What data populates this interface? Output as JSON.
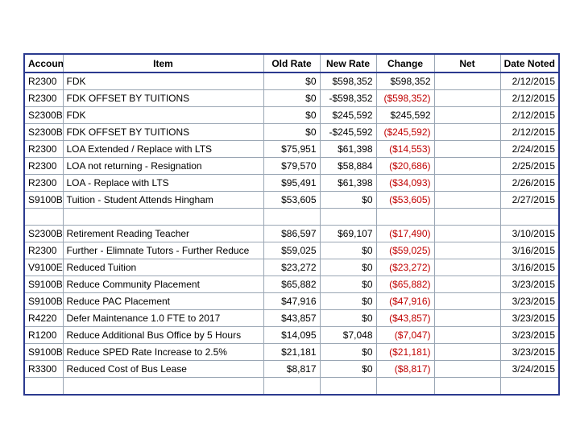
{
  "columns": [
    "Account",
    "Item",
    "Old Rate",
    "New Rate",
    "Change",
    "Net",
    "Date Noted"
  ],
  "rows": [
    {
      "account": "R2300",
      "item": "FDK",
      "old": "$0",
      "new": "$598,352",
      "change": "$598,352",
      "net": "",
      "date": "2/12/2015",
      "neg": false
    },
    {
      "account": "R2300",
      "item": "FDK OFFSET BY TUITIONS",
      "old": "$0",
      "new": "-$598,352",
      "change": "($598,352)",
      "net": "",
      "date": "2/12/2015",
      "neg": true
    },
    {
      "account": "S2300B",
      "item": "FDK",
      "old": "$0",
      "new": "$245,592",
      "change": "$245,592",
      "net": "",
      "date": "2/12/2015",
      "neg": false
    },
    {
      "account": "S2300B",
      "item": "FDK OFFSET BY TUITIONS",
      "old": "$0",
      "new": "-$245,592",
      "change": "($245,592)",
      "net": "",
      "date": "2/12/2015",
      "neg": true
    },
    {
      "account": "R2300",
      "item": "LOA Extended / Replace with LTS",
      "old": "$75,951",
      "new": "$61,398",
      "change": "($14,553)",
      "net": "",
      "date": "2/24/2015",
      "neg": true
    },
    {
      "account": "R2300",
      "item": "LOA not returning - Resignation",
      "old": "$79,570",
      "new": "$58,884",
      "change": "($20,686)",
      "net": "",
      "date": "2/25/2015",
      "neg": true
    },
    {
      "account": "R2300",
      "item": "LOA - Replace with LTS",
      "old": "$95,491",
      "new": "$61,398",
      "change": "($34,093)",
      "net": "",
      "date": "2/26/2015",
      "neg": true
    },
    {
      "account": "S9100B",
      "item": "Tuition - Student Attends Hingham",
      "old": "$53,605",
      "new": "$0",
      "change": "($53,605)",
      "net": "",
      "date": "2/27/2015",
      "neg": true
    },
    {
      "account": "",
      "item": "",
      "old": "",
      "new": "",
      "change": "",
      "net": "",
      "date": "",
      "neg": false
    },
    {
      "account": "S2300B",
      "item": "Retirement Reading Teacher",
      "old": "$86,597",
      "new": "$69,107",
      "change": "($17,490)",
      "net": "",
      "date": "3/10/2015",
      "neg": true
    },
    {
      "account": "R2300",
      "item": "Further - Elimnate Tutors - Further Reduce",
      "old": "$59,025",
      "new": "$0",
      "change": "($59,025)",
      "net": "",
      "date": "3/16/2015",
      "neg": true
    },
    {
      "account": "V9100E",
      "item": "Reduced Tuition",
      "old": "$23,272",
      "new": "$0",
      "change": "($23,272)",
      "net": "",
      "date": "3/16/2015",
      "neg": true
    },
    {
      "account": "S9100B",
      "item": "Reduce Community Placement",
      "old": "$65,882",
      "new": "$0",
      "change": "($65,882)",
      "net": "",
      "date": "3/23/2015",
      "neg": true
    },
    {
      "account": "S9100B",
      "item": "Reduce PAC Placement",
      "old": "$47,916",
      "new": "$0",
      "change": "($47,916)",
      "net": "",
      "date": "3/23/2015",
      "neg": true
    },
    {
      "account": "R4220",
      "item": "Defer Maintenance 1.0 FTE to 2017",
      "old": "$43,857",
      "new": "$0",
      "change": "($43,857)",
      "net": "",
      "date": "3/23/2015",
      "neg": true
    },
    {
      "account": "R1200",
      "item": "Reduce Additional Bus Office by 5 Hours",
      "old": "$14,095",
      "new": "$7,048",
      "change": "($7,047)",
      "net": "",
      "date": "3/23/2015",
      "neg": true
    },
    {
      "account": "S9100B",
      "item": "Reduce SPED Rate Increase to 2.5%",
      "old": "$21,181",
      "new": "$0",
      "change": "($21,181)",
      "net": "",
      "date": "3/23/2015",
      "neg": true
    },
    {
      "account": "R3300",
      "item": "Reduced Cost of Bus Lease",
      "old": "$8,817",
      "new": "$0",
      "change": "($8,817)",
      "net": "",
      "date": "3/24/2015",
      "neg": true
    },
    {
      "account": "",
      "item": "",
      "old": "",
      "new": "",
      "change": "",
      "net": "",
      "date": "",
      "neg": false
    }
  ],
  "colors": {
    "border": "#2b3a8f",
    "grid": "#9aa6b4",
    "negative": "#c00000"
  }
}
